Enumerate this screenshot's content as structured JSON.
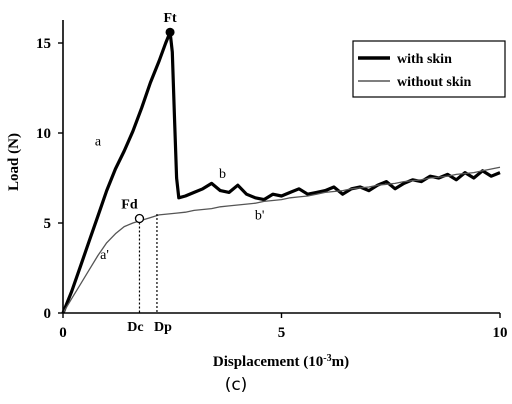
{
  "chart_data": {
    "type": "line",
    "caption": "(c)",
    "xlabel": "Displacement (10",
    "xlabel_sup": "-3",
    "xlabel_tail": "m)",
    "ylabel": "Load (N)",
    "xlim": [
      0,
      10
    ],
    "ylim": [
      0,
      16
    ],
    "x_ticks": [
      0,
      5,
      10
    ],
    "y_ticks": [
      0,
      5,
      10,
      15
    ],
    "legend": {
      "position": "top-right"
    },
    "series": [
      {
        "name": "with skin",
        "color": "#000000",
        "style": "thick",
        "points": [
          [
            0,
            0
          ],
          [
            0.2,
            1.2
          ],
          [
            0.4,
            2.6
          ],
          [
            0.6,
            4.0
          ],
          [
            0.8,
            5.4
          ],
          [
            1.0,
            6.8
          ],
          [
            1.2,
            8.0
          ],
          [
            1.4,
            9.0
          ],
          [
            1.6,
            10.1
          ],
          [
            1.8,
            11.4
          ],
          [
            2.0,
            12.8
          ],
          [
            2.2,
            14.0
          ],
          [
            2.35,
            15.0
          ],
          [
            2.45,
            15.6
          ],
          [
            2.5,
            14.5
          ],
          [
            2.55,
            11.0
          ],
          [
            2.6,
            7.5
          ],
          [
            2.65,
            6.4
          ],
          [
            2.8,
            6.5
          ],
          [
            3.0,
            6.7
          ],
          [
            3.2,
            6.9
          ],
          [
            3.4,
            7.2
          ],
          [
            3.6,
            6.8
          ],
          [
            3.8,
            6.7
          ],
          [
            4.0,
            7.1
          ],
          [
            4.2,
            6.6
          ],
          [
            4.4,
            6.4
          ],
          [
            4.6,
            6.3
          ],
          [
            4.8,
            6.6
          ],
          [
            5.0,
            6.5
          ],
          [
            5.2,
            6.7
          ],
          [
            5.4,
            6.9
          ],
          [
            5.6,
            6.6
          ],
          [
            5.8,
            6.7
          ],
          [
            6.0,
            6.8
          ],
          [
            6.2,
            7.0
          ],
          [
            6.4,
            6.6
          ],
          [
            6.6,
            6.9
          ],
          [
            6.8,
            7.0
          ],
          [
            7.0,
            6.8
          ],
          [
            7.2,
            7.1
          ],
          [
            7.4,
            7.3
          ],
          [
            7.6,
            6.9
          ],
          [
            7.8,
            7.2
          ],
          [
            8.0,
            7.4
          ],
          [
            8.2,
            7.3
          ],
          [
            8.4,
            7.6
          ],
          [
            8.6,
            7.5
          ],
          [
            8.8,
            7.7
          ],
          [
            9.0,
            7.4
          ],
          [
            9.2,
            7.8
          ],
          [
            9.4,
            7.5
          ],
          [
            9.6,
            7.9
          ],
          [
            9.8,
            7.6
          ],
          [
            10.0,
            7.8
          ]
        ]
      },
      {
        "name": "without skin",
        "color": "#555555",
        "style": "thin",
        "points": [
          [
            0,
            0
          ],
          [
            0.2,
            0.8
          ],
          [
            0.4,
            1.6
          ],
          [
            0.6,
            2.4
          ],
          [
            0.8,
            3.2
          ],
          [
            1.0,
            3.9
          ],
          [
            1.2,
            4.4
          ],
          [
            1.4,
            4.8
          ],
          [
            1.6,
            5.0
          ],
          [
            1.8,
            5.15
          ],
          [
            2.0,
            5.3
          ],
          [
            2.2,
            5.45
          ],
          [
            2.4,
            5.5
          ],
          [
            2.6,
            5.55
          ],
          [
            2.8,
            5.6
          ],
          [
            3.0,
            5.7
          ],
          [
            3.2,
            5.75
          ],
          [
            3.4,
            5.8
          ],
          [
            3.6,
            5.9
          ],
          [
            3.8,
            5.95
          ],
          [
            4.0,
            6.0
          ],
          [
            4.2,
            6.05
          ],
          [
            4.4,
            6.1
          ],
          [
            4.6,
            6.2
          ],
          [
            4.8,
            6.25
          ],
          [
            5.0,
            6.3
          ],
          [
            5.2,
            6.4
          ],
          [
            5.4,
            6.45
          ],
          [
            5.6,
            6.5
          ],
          [
            5.8,
            6.6
          ],
          [
            6.0,
            6.7
          ],
          [
            6.2,
            6.75
          ],
          [
            6.4,
            6.8
          ],
          [
            6.6,
            6.9
          ],
          [
            6.8,
            6.95
          ],
          [
            7.0,
            7.0
          ],
          [
            7.2,
            7.1
          ],
          [
            7.4,
            7.15
          ],
          [
            7.6,
            7.2
          ],
          [
            7.8,
            7.3
          ],
          [
            8.0,
            7.35
          ],
          [
            8.2,
            7.4
          ],
          [
            8.4,
            7.5
          ],
          [
            8.6,
            7.55
          ],
          [
            8.8,
            7.6
          ],
          [
            9.0,
            7.7
          ],
          [
            9.2,
            7.75
          ],
          [
            9.4,
            7.8
          ],
          [
            9.6,
            7.9
          ],
          [
            9.8,
            8.0
          ],
          [
            10.0,
            8.1
          ]
        ]
      }
    ],
    "annotations": {
      "ft": {
        "label": "Ft",
        "x": 2.45,
        "y": 15.6
      },
      "fd": {
        "label": "Fd",
        "x": 1.75,
        "y": 5.25
      },
      "dc": {
        "label": "Dc",
        "x": 1.75
      },
      "dp": {
        "label": "Dp",
        "x": 2.15
      },
      "a": {
        "label": "a",
        "x": 0.8,
        "y": 9.3
      },
      "a_prime": {
        "label": "a'",
        "x": 0.95,
        "y": 3.0
      },
      "b": {
        "label": "b",
        "x": 3.65,
        "y": 7.5
      },
      "b_prime": {
        "label": "b'",
        "x": 4.5,
        "y": 5.2
      }
    }
  }
}
